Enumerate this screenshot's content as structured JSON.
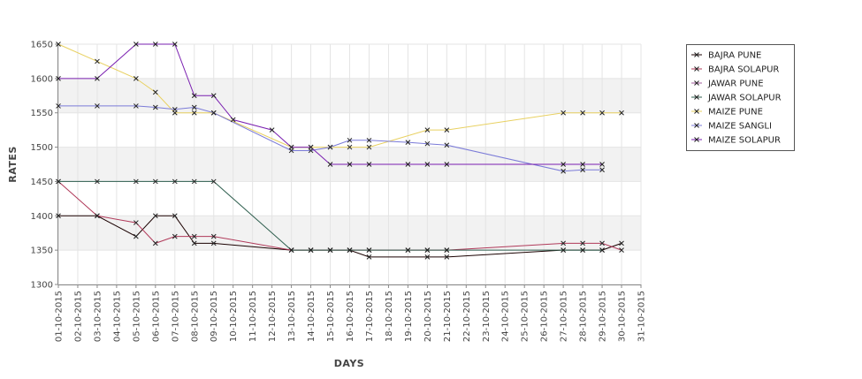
{
  "chart_data": {
    "type": "line",
    "title": "",
    "xlabel": "DAYS",
    "ylabel": "RATES",
    "ylim": [
      1300,
      1650
    ],
    "yticks": [
      1300,
      1350,
      1400,
      1450,
      1500,
      1550,
      1600,
      1650
    ],
    "grid": true,
    "legend_position": "top-right",
    "categories": [
      "01-10-2015",
      "02-10-2015",
      "03-10-2015",
      "04-10-2015",
      "05-10-2015",
      "06-10-2015",
      "07-10-2015",
      "08-10-2015",
      "09-10-2015",
      "10-10-2015",
      "11-10-2015",
      "12-10-2015",
      "13-10-2015",
      "14-10-2015",
      "15-10-2015",
      "16-10-2015",
      "17-10-2015",
      "18-10-2015",
      "19-10-2015",
      "20-10-2015",
      "21-10-2015",
      "22-10-2015",
      "23-10-2015",
      "24-10-2015",
      "25-10-2015",
      "26-10-2015",
      "27-10-2015",
      "28-10-2015",
      "29-10-2015",
      "30-10-2015",
      "31-10-2015"
    ],
    "series": [
      {
        "name": "BAJRA PUNE",
        "color": "#1a0000",
        "points": [
          [
            1,
            1400
          ],
          [
            3,
            1400
          ],
          [
            5,
            1370
          ],
          [
            6,
            1400
          ],
          [
            7,
            1400
          ],
          [
            8,
            1360
          ],
          [
            9,
            1360
          ],
          [
            13,
            1350
          ],
          [
            14,
            1350
          ],
          [
            15,
            1350
          ],
          [
            16,
            1350
          ],
          [
            17,
            1340
          ],
          [
            20,
            1340
          ],
          [
            21,
            1340
          ],
          [
            27,
            1350
          ],
          [
            28,
            1350
          ],
          [
            29,
            1350
          ],
          [
            30,
            1360
          ]
        ]
      },
      {
        "name": "BAJRA SOLAPUR",
        "color": "#b03a5a",
        "points": [
          [
            1,
            1450
          ],
          [
            3,
            1400
          ],
          [
            5,
            1390
          ],
          [
            6,
            1360
          ],
          [
            7,
            1370
          ],
          [
            8,
            1370
          ],
          [
            9,
            1370
          ],
          [
            13,
            1350
          ],
          [
            14,
            1350
          ],
          [
            15,
            1350
          ],
          [
            16,
            1350
          ],
          [
            17,
            1350
          ],
          [
            19,
            1350
          ],
          [
            20,
            1350
          ],
          [
            21,
            1350
          ],
          [
            27,
            1360
          ],
          [
            28,
            1360
          ],
          [
            29,
            1360
          ],
          [
            30,
            1350
          ]
        ]
      },
      {
        "name": "JAWAR PUNE",
        "color": "#a05c9c",
        "points": []
      },
      {
        "name": "JAWAR SOLAPUR",
        "color": "#2e5e4e",
        "points": [
          [
            1,
            1450
          ],
          [
            3,
            1450
          ],
          [
            5,
            1450
          ],
          [
            6,
            1450
          ],
          [
            7,
            1450
          ],
          [
            8,
            1450
          ],
          [
            9,
            1450
          ],
          [
            13,
            1350
          ],
          [
            14,
            1350
          ],
          [
            15,
            1350
          ],
          [
            16,
            1350
          ],
          [
            17,
            1350
          ],
          [
            19,
            1350
          ],
          [
            20,
            1350
          ],
          [
            21,
            1350
          ],
          [
            27,
            1350
          ],
          [
            28,
            1350
          ],
          [
            29,
            1350
          ]
        ]
      },
      {
        "name": "MAIZE PUNE",
        "color": "#e8d060",
        "points": [
          [
            1,
            1650
          ],
          [
            3,
            1625
          ],
          [
            5,
            1600
          ],
          [
            6,
            1580
          ],
          [
            7,
            1550
          ],
          [
            8,
            1550
          ],
          [
            9,
            1550
          ],
          [
            13,
            1500
          ],
          [
            14,
            1500
          ],
          [
            15,
            1500
          ],
          [
            16,
            1500
          ],
          [
            17,
            1500
          ],
          [
            20,
            1525
          ],
          [
            21,
            1525
          ],
          [
            27,
            1550
          ],
          [
            28,
            1550
          ],
          [
            29,
            1550
          ],
          [
            30,
            1550
          ]
        ]
      },
      {
        "name": "MAIZE SANGLI",
        "color": "#7b7bd8",
        "points": [
          [
            1,
            1560
          ],
          [
            3,
            1560
          ],
          [
            5,
            1560
          ],
          [
            6,
            1558
          ],
          [
            7,
            1555
          ],
          [
            8,
            1558
          ],
          [
            9,
            1550
          ],
          [
            13,
            1495
          ],
          [
            14,
            1495
          ],
          [
            15,
            1500
          ],
          [
            16,
            1510
          ],
          [
            17,
            1510
          ],
          [
            19,
            1507
          ],
          [
            20,
            1505
          ],
          [
            21,
            1503
          ],
          [
            27,
            1465
          ],
          [
            28,
            1467
          ],
          [
            29,
            1467
          ]
        ]
      },
      {
        "name": "MAIZE SOLAPUR",
        "color": "#7a1fb0",
        "points": [
          [
            1,
            1600
          ],
          [
            3,
            1600
          ],
          [
            5,
            1650
          ],
          [
            6,
            1650
          ],
          [
            7,
            1650
          ],
          [
            8,
            1575
          ],
          [
            9,
            1575
          ],
          [
            10,
            1540
          ],
          [
            12,
            1525
          ],
          [
            13,
            1500
          ],
          [
            14,
            1500
          ],
          [
            15,
            1475
          ],
          [
            16,
            1475
          ],
          [
            17,
            1475
          ],
          [
            19,
            1475
          ],
          [
            20,
            1475
          ],
          [
            21,
            1475
          ],
          [
            27,
            1475
          ],
          [
            28,
            1475
          ],
          [
            29,
            1475
          ]
        ]
      }
    ]
  }
}
